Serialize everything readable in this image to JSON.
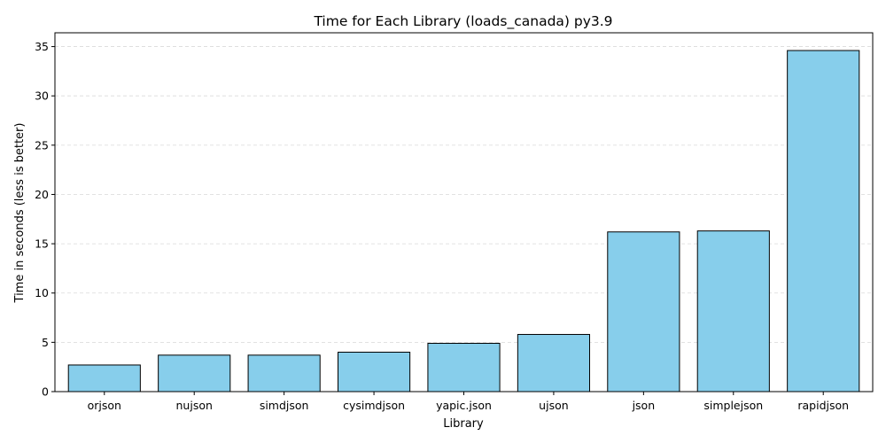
{
  "chart_data": {
    "type": "bar",
    "title": "Time for Each Library (loads_canada) py3.9",
    "xlabel": "Library",
    "ylabel": "Time in seconds (less is better)",
    "categories": [
      "orjson",
      "nujson",
      "simdjson",
      "cysimdjson",
      "yapic.json",
      "ujson",
      "json",
      "simplejson",
      "rapidjson"
    ],
    "values": [
      2.7,
      3.7,
      3.7,
      4.0,
      4.9,
      5.8,
      16.2,
      16.3,
      34.6
    ],
    "ylim": [
      0,
      36.4
    ],
    "yticks": [
      0,
      5,
      10,
      15,
      20,
      25,
      30,
      35
    ],
    "grid": "y-dashed",
    "bar_color": "#87ceeb",
    "bar_edge_color": "#000000"
  }
}
